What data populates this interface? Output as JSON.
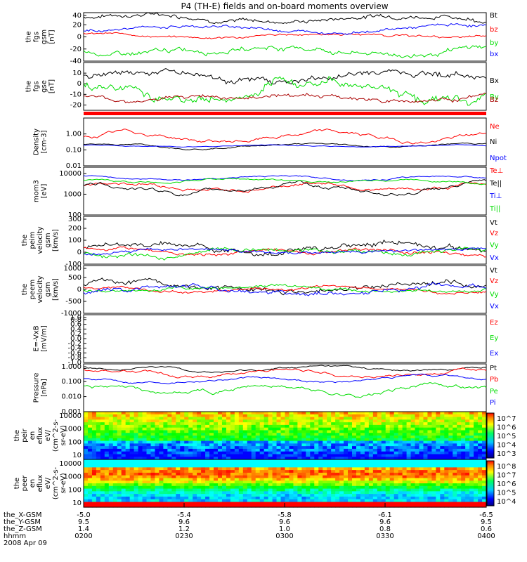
{
  "title": "P4 (TH-E) fields and on-board moments overview",
  "colors": {
    "black": "#000000",
    "red": "#ff0000",
    "green": "#00dd00",
    "blue": "#0000ff",
    "darkred": "#aa0000"
  },
  "chart_data": [
    {
      "type": "line",
      "ylabel": [
        "the",
        "fgs",
        "gsm",
        "[nT]"
      ],
      "ylim": [
        -40,
        40
      ],
      "ticks": [
        40,
        20,
        0,
        -20,
        -40
      ],
      "series": [
        {
          "name": "Bt",
          "color": "black",
          "base": 33,
          "amp": 6
        },
        {
          "name": "bz",
          "color": "red",
          "base": 2,
          "amp": 3
        },
        {
          "name": "by",
          "color": "green",
          "base": -22,
          "amp": 7
        },
        {
          "name": "bx",
          "color": "blue",
          "base": 14,
          "amp": 4
        }
      ]
    },
    {
      "type": "line",
      "ylabel": [
        "the",
        "fgs",
        "gse",
        "[nT]"
      ],
      "ylim": [
        -25,
        20
      ],
      "ticks": [
        10,
        0,
        -10,
        -20
      ],
      "series": [
        {
          "name": "Bx",
          "color": "black",
          "base": 8,
          "amp": 5
        },
        {
          "name": "By",
          "color": "green",
          "base": -6,
          "amp": 8
        },
        {
          "name": "Bz",
          "color": "darkred",
          "base": -12,
          "amp": 3
        }
      ]
    },
    {
      "type": "line",
      "log": true,
      "ylabel": [
        "Density",
        "[cm-3]"
      ],
      "ylim": [
        0.01,
        10
      ],
      "ticks": [
        "1.00",
        "0.10",
        "0.01"
      ],
      "tickvals": [
        1,
        0.1,
        0.01
      ],
      "series": [
        {
          "name": "Ne",
          "color": "red",
          "base": 0.6,
          "amp": 0.5
        },
        {
          "name": "Ni",
          "color": "black",
          "base": 0.2,
          "amp": 0.2
        },
        {
          "name": "Npot",
          "color": "blue",
          "base": 0.18,
          "amp": 0.1
        }
      ]
    },
    {
      "type": "line",
      "log": true,
      "ylabel": [
        "mom3",
        "[eV]"
      ],
      "ylim": [
        100,
        20000
      ],
      "ticks": [
        "10000",
        "1000",
        "100"
      ],
      "tickvals": [
        10000,
        1000,
        100
      ],
      "series": [
        {
          "name": "Te⊥",
          "color": "red",
          "base": 2500,
          "amp": 0.4
        },
        {
          "name": "Te||",
          "color": "black",
          "base": 1800,
          "amp": 0.4
        },
        {
          "name": "Ti⊥",
          "color": "blue",
          "base": 6500,
          "amp": 0.15
        },
        {
          "name": "Ti||",
          "color": "green",
          "base": 4500,
          "amp": 0.2
        }
      ]
    },
    {
      "type": "line",
      "ylabel": [
        "the",
        "peim",
        "velocity",
        "gsm",
        "[km/s]"
      ],
      "ylim": [
        -100,
        300
      ],
      "ticks": [
        300,
        200,
        100,
        0,
        -100
      ],
      "series": [
        {
          "name": "Vt",
          "color": "black",
          "base": 40,
          "amp": 40
        },
        {
          "name": "Vz",
          "color": "red",
          "base": 10,
          "amp": 25
        },
        {
          "name": "Vy",
          "color": "green",
          "base": 0,
          "amp": 30
        },
        {
          "name": "Vx",
          "color": "blue",
          "base": 0,
          "amp": 20
        }
      ]
    },
    {
      "type": "line",
      "ylabel": [
        "the",
        "peem",
        "velocity",
        "gsm",
        "[km/s]"
      ],
      "ylim": [
        -1000,
        1000
      ],
      "ticks": [
        1000,
        500,
        0,
        -500,
        -1000
      ],
      "series": [
        {
          "name": "Vt",
          "color": "black",
          "base": 120,
          "amp": 180
        },
        {
          "name": "Vz",
          "color": "red",
          "base": 0,
          "amp": 100
        },
        {
          "name": "Vy",
          "color": "green",
          "base": 0,
          "amp": 100
        },
        {
          "name": "Vx",
          "color": "blue",
          "base": 0,
          "amp": 150
        }
      ]
    },
    {
      "type": "line",
      "ylabel": [
        "E=-VxB",
        "[mV/m]"
      ],
      "ylim": [
        -1,
        1
      ],
      "ticks": [
        "1.0",
        "0.8",
        "0.6",
        "0.4",
        "0.2",
        "0.0",
        "-0.2",
        "-0.4",
        "-0.6",
        "-0.8",
        "-1.0"
      ],
      "series": [
        {
          "name": "Ez",
          "color": "red"
        },
        {
          "name": "Ey",
          "color": "green"
        },
        {
          "name": "Ex",
          "color": "blue"
        }
      ]
    },
    {
      "type": "line",
      "log": true,
      "ylabel": [
        "Pressure",
        "[nPa]"
      ],
      "ylim": [
        0.001,
        1.5
      ],
      "ticks": [
        "1.000",
        "0.100",
        "0.010",
        "0.001"
      ],
      "tickvals": [
        1,
        0.1,
        0.01,
        0.001
      ],
      "series": [
        {
          "name": "Pt",
          "color": "black",
          "base": 0.7,
          "amp": 0.3
        },
        {
          "name": "Pb",
          "color": "red",
          "base": 0.45,
          "amp": 0.4
        },
        {
          "name": "Pe",
          "color": "green",
          "base": 0.03,
          "amp": 0.6
        },
        {
          "name": "Pi",
          "color": "blue",
          "base": 0.15,
          "amp": 0.3
        }
      ]
    },
    {
      "type": "heatmap",
      "ylabel": [
        "the",
        "peir",
        "en",
        "eflux",
        "eV/",
        "(cm^2-s-",
        "sr-eV)"
      ],
      "yticks": [
        "10000",
        "1000",
        "100",
        "10"
      ],
      "colorbar": [
        "10^7",
        "10^6",
        "10^5",
        "10^4",
        "10^3"
      ]
    },
    {
      "type": "heatmap",
      "ylabel": [
        "the",
        "peer",
        "en",
        "eflux",
        "eV/",
        "(cm^2-s-",
        "sr-eV)"
      ],
      "yticks": [
        "10000",
        "1000",
        "100",
        "10"
      ],
      "colorbar": [
        "10^8",
        "10^7",
        "10^6",
        "10^5",
        "10^4"
      ]
    }
  ],
  "xaxis": {
    "rows": [
      {
        "label": "the_X-GSM",
        "values": [
          "-5.0",
          "-5.4",
          "-5.8",
          "-6.1",
          "-6.5"
        ]
      },
      {
        "label": "the_Y-GSM",
        "values": [
          "9.5",
          "9.6",
          "9.6",
          "9.6",
          "9.5"
        ]
      },
      {
        "label": "the_Z-GSM",
        "values": [
          "1.4",
          "1.2",
          "1.0",
          "0.8",
          "0.6"
        ]
      },
      {
        "label": "hhmm",
        "values": [
          "0200",
          "0230",
          "0300",
          "0330",
          "0400"
        ]
      }
    ],
    "date": "2008 Apr 09"
  }
}
